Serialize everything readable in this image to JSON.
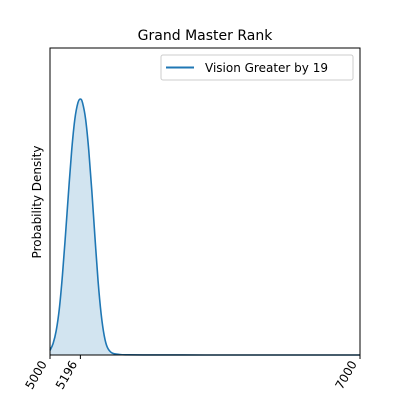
{
  "chart_data": {
    "type": "area",
    "title": "Grand Master Rank",
    "xlabel": "",
    "ylabel": "Probability Density",
    "xlim": [
      5000,
      7000
    ],
    "xticks": [
      "5000",
      "5196",
      "7000"
    ],
    "xtick_values": [
      5000,
      5196,
      7000
    ],
    "yticks": [],
    "legend": {
      "placement": "top-right",
      "entries": [
        "Vision Greater by 19"
      ]
    },
    "grid": false,
    "series": [
      {
        "name": "Vision Greater by 19",
        "color": "#1f77b4",
        "fill_color": "#1f77b4",
        "fill_opacity": 0.2,
        "peak_x": 5196,
        "x": [
          5000,
          5020,
          5040,
          5060,
          5080,
          5100,
          5120,
          5140,
          5160,
          5180,
          5196,
          5210,
          5230,
          5250,
          5270,
          5290,
          5310,
          5330,
          5350,
          5370,
          5400,
          5450,
          5500,
          5600,
          5800,
          6000,
          6500,
          7000
        ],
        "y": [
          0.018,
          0.045,
          0.095,
          0.18,
          0.31,
          0.47,
          0.64,
          0.8,
          0.92,
          0.985,
          1.0,
          0.985,
          0.92,
          0.8,
          0.64,
          0.46,
          0.29,
          0.16,
          0.075,
          0.03,
          0.008,
          0.002,
          0.0007,
          0.0003,
          0.0001,
          4e-05,
          1e-05,
          0.0
        ]
      }
    ]
  }
}
